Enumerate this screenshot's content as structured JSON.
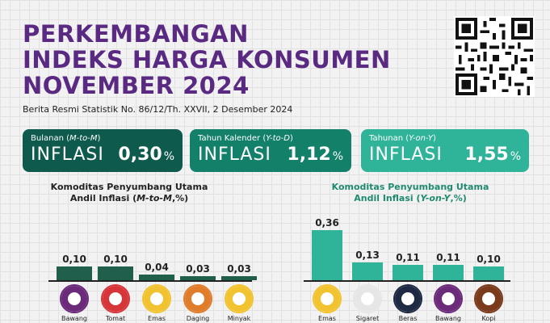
{
  "header": {
    "title_line1": "PERKEMBANGAN",
    "title_line2": "INDEKS HARGA KONSUMEN",
    "title_line3": "NOVEMBER 2024",
    "subtitle": "Berita Resmi Statistik No. 86/12/Th. XXVII, 2 Desember 2024"
  },
  "cards": [
    {
      "label_prefix": "Bulanan (",
      "label_em": "M-to-M",
      "label_suffix": ")",
      "word": "INFLASI",
      "value": "0,30",
      "unit": "%"
    },
    {
      "label_prefix": "Tahun Kalender (",
      "label_em": "Y-to-D",
      "label_suffix": ")",
      "word": "INFLASI",
      "value": "1,12",
      "unit": "%"
    },
    {
      "label_prefix": "Tahunan (",
      "label_em": "Y-on-Y",
      "label_suffix": ")",
      "word": "INFLASI",
      "value": "1,55",
      "unit": "%"
    }
  ],
  "colors": {
    "title": "#5a2a82",
    "card1": "#0e5a4c",
    "card2": "#13806a",
    "card3": "#2fb49a"
  },
  "chart_data": [
    {
      "type": "bar",
      "title_line1": "Komoditas Penyumbang Utama",
      "title_line2_prefix": "Andil Inflasi (",
      "title_line2_em": "M-to-M",
      "title_line2_suffix": ",%)",
      "categories": [
        "Bawang",
        "Tomat",
        "Emas",
        "Daging",
        "Minyak"
      ],
      "values": [
        0.1,
        0.1,
        0.04,
        0.03,
        0.03
      ],
      "value_labels": [
        "0,10",
        "0,10",
        "0,04",
        "0,03",
        "0,03"
      ],
      "ylim": [
        0,
        0.4
      ]
    },
    {
      "type": "bar",
      "title_line1": "Komoditas Penyumbang Utama",
      "title_line2_prefix": "Andil Inflasi (",
      "title_line2_em": "Y-on-Y",
      "title_line2_suffix": ",%)",
      "categories": [
        "Emas",
        "Sigaret",
        "Beras",
        "Bawang",
        "Kopi"
      ],
      "values": [
        0.36,
        0.13,
        0.11,
        0.11,
        0.1
      ],
      "value_labels": [
        "0,36",
        "0,13",
        "0,11",
        "0,11",
        "0,10"
      ],
      "ylim": [
        0,
        0.4
      ]
    }
  ]
}
